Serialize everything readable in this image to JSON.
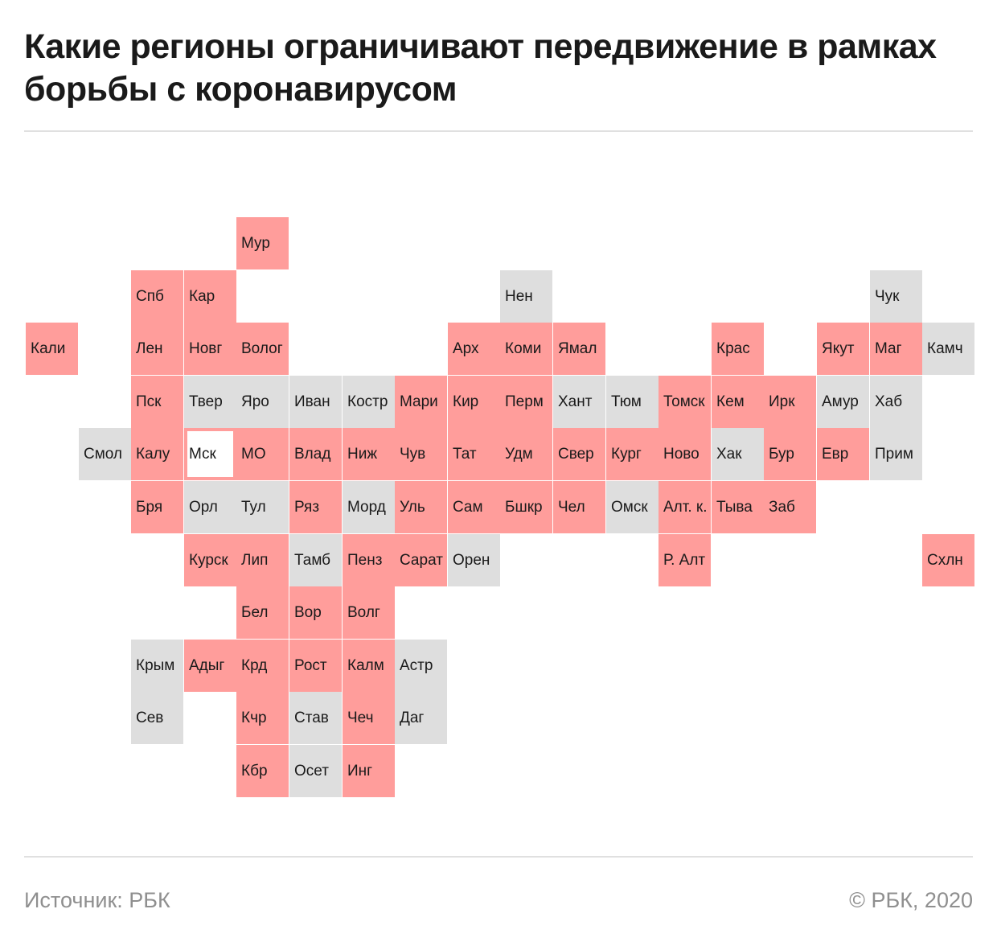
{
  "title": "Какие регионы ограничивают передвижение в рамках борьбы с коронавирусом",
  "source": "Источник: РБК",
  "copyright": "© РБК, 2020",
  "colors": {
    "restricted": "#ff9d9b",
    "not_restricted": "#dedede"
  },
  "regions": [
    {
      "label": "Мур",
      "restricted": true,
      "col": 4,
      "row": 0
    },
    {
      "label": "Спб",
      "restricted": true,
      "col": 2,
      "row": 1
    },
    {
      "label": "Кар",
      "restricted": true,
      "col": 3,
      "row": 1
    },
    {
      "label": "Нен",
      "restricted": false,
      "col": 9,
      "row": 1
    },
    {
      "label": "Чук",
      "restricted": false,
      "col": 16,
      "row": 1
    },
    {
      "label": "Кали",
      "restricted": true,
      "col": 0,
      "row": 2
    },
    {
      "label": "Лен",
      "restricted": true,
      "col": 2,
      "row": 2
    },
    {
      "label": "Новг",
      "restricted": true,
      "col": 3,
      "row": 2
    },
    {
      "label": "Волог",
      "restricted": true,
      "col": 4,
      "row": 2
    },
    {
      "label": "Арх",
      "restricted": true,
      "col": 8,
      "row": 2
    },
    {
      "label": "Коми",
      "restricted": true,
      "col": 9,
      "row": 2
    },
    {
      "label": "Ямал",
      "restricted": true,
      "col": 10,
      "row": 2
    },
    {
      "label": "Крас",
      "restricted": true,
      "col": 13,
      "row": 2
    },
    {
      "label": "Якут",
      "restricted": true,
      "col": 15,
      "row": 2
    },
    {
      "label": "Маг",
      "restricted": true,
      "col": 16,
      "row": 2
    },
    {
      "label": "Камч",
      "restricted": false,
      "col": 17,
      "row": 2
    },
    {
      "label": "Пск",
      "restricted": true,
      "col": 2,
      "row": 3
    },
    {
      "label": "Твер",
      "restricted": false,
      "col": 3,
      "row": 3
    },
    {
      "label": "Яро",
      "restricted": false,
      "col": 4,
      "row": 3
    },
    {
      "label": "Иван",
      "restricted": false,
      "col": 5,
      "row": 3
    },
    {
      "label": "Костр",
      "restricted": false,
      "col": 6,
      "row": 3
    },
    {
      "label": "Мари",
      "restricted": true,
      "col": 7,
      "row": 3
    },
    {
      "label": "Кир",
      "restricted": true,
      "col": 8,
      "row": 3
    },
    {
      "label": "Перм",
      "restricted": true,
      "col": 9,
      "row": 3
    },
    {
      "label": "Хант",
      "restricted": false,
      "col": 10,
      "row": 3
    },
    {
      "label": "Тюм",
      "restricted": false,
      "col": 11,
      "row": 3
    },
    {
      "label": "Томск",
      "restricted": true,
      "col": 12,
      "row": 3
    },
    {
      "label": "Кем",
      "restricted": true,
      "col": 13,
      "row": 3
    },
    {
      "label": "Ирк",
      "restricted": true,
      "col": 14,
      "row": 3
    },
    {
      "label": "Амур",
      "restricted": false,
      "col": 15,
      "row": 3
    },
    {
      "label": "Хаб",
      "restricted": false,
      "col": 16,
      "row": 3
    },
    {
      "label": "Смол",
      "restricted": false,
      "col": 1,
      "row": 4
    },
    {
      "label": "Калу",
      "restricted": true,
      "col": 2,
      "row": 4
    },
    {
      "label": "Мск",
      "restricted": true,
      "col": 3,
      "row": 4
    },
    {
      "label": "МО",
      "restricted": true,
      "col": 4,
      "row": 4
    },
    {
      "label": "Влад",
      "restricted": true,
      "col": 5,
      "row": 4
    },
    {
      "label": "Ниж",
      "restricted": true,
      "col": 6,
      "row": 4
    },
    {
      "label": "Чув",
      "restricted": true,
      "col": 7,
      "row": 4
    },
    {
      "label": "Тат",
      "restricted": true,
      "col": 8,
      "row": 4
    },
    {
      "label": "Удм",
      "restricted": true,
      "col": 9,
      "row": 4
    },
    {
      "label": "Свер",
      "restricted": true,
      "col": 10,
      "row": 4
    },
    {
      "label": "Кург",
      "restricted": true,
      "col": 11,
      "row": 4
    },
    {
      "label": "Ново",
      "restricted": true,
      "col": 12,
      "row": 4
    },
    {
      "label": "Хак",
      "restricted": false,
      "col": 13,
      "row": 4
    },
    {
      "label": "Бур",
      "restricted": true,
      "col": 14,
      "row": 4
    },
    {
      "label": "Евр",
      "restricted": true,
      "col": 15,
      "row": 4
    },
    {
      "label": "Прим",
      "restricted": false,
      "col": 16,
      "row": 4
    },
    {
      "label": "Бря",
      "restricted": true,
      "col": 2,
      "row": 5
    },
    {
      "label": "Орл",
      "restricted": false,
      "col": 3,
      "row": 5
    },
    {
      "label": "Тул",
      "restricted": false,
      "col": 4,
      "row": 5
    },
    {
      "label": "Ряз",
      "restricted": true,
      "col": 5,
      "row": 5
    },
    {
      "label": "Морд",
      "restricted": false,
      "col": 6,
      "row": 5
    },
    {
      "label": "Уль",
      "restricted": true,
      "col": 7,
      "row": 5
    },
    {
      "label": "Сам",
      "restricted": true,
      "col": 8,
      "row": 5
    },
    {
      "label": "Бшкр",
      "restricted": true,
      "col": 9,
      "row": 5
    },
    {
      "label": "Чел",
      "restricted": true,
      "col": 10,
      "row": 5
    },
    {
      "label": "Омск",
      "restricted": false,
      "col": 11,
      "row": 5
    },
    {
      "label": "Алт. к.",
      "restricted": true,
      "col": 12,
      "row": 5
    },
    {
      "label": "Тыва",
      "restricted": true,
      "col": 13,
      "row": 5
    },
    {
      "label": "Заб",
      "restricted": true,
      "col": 14,
      "row": 5
    },
    {
      "label": "Курск",
      "restricted": true,
      "col": 3,
      "row": 6
    },
    {
      "label": "Лип",
      "restricted": true,
      "col": 4,
      "row": 6
    },
    {
      "label": "Тамб",
      "restricted": false,
      "col": 5,
      "row": 6
    },
    {
      "label": "Пенз",
      "restricted": true,
      "col": 6,
      "row": 6
    },
    {
      "label": "Сарат",
      "restricted": true,
      "col": 7,
      "row": 6
    },
    {
      "label": "Орен",
      "restricted": false,
      "col": 8,
      "row": 6
    },
    {
      "label": "Р. Алт",
      "restricted": true,
      "col": 12,
      "row": 6
    },
    {
      "label": "Схлн",
      "restricted": true,
      "col": 17,
      "row": 6
    },
    {
      "label": "Бел",
      "restricted": true,
      "col": 4,
      "row": 7
    },
    {
      "label": "Вор",
      "restricted": true,
      "col": 5,
      "row": 7
    },
    {
      "label": "Волг",
      "restricted": true,
      "col": 6,
      "row": 7
    },
    {
      "label": "Крым",
      "restricted": false,
      "col": 2,
      "row": 8
    },
    {
      "label": "Адыг",
      "restricted": true,
      "col": 3,
      "row": 8
    },
    {
      "label": "Крд",
      "restricted": true,
      "col": 4,
      "row": 8
    },
    {
      "label": "Рост",
      "restricted": true,
      "col": 5,
      "row": 8
    },
    {
      "label": "Калм",
      "restricted": true,
      "col": 6,
      "row": 8
    },
    {
      "label": "Астр",
      "restricted": false,
      "col": 7,
      "row": 8
    },
    {
      "label": "Сев",
      "restricted": false,
      "col": 2,
      "row": 9
    },
    {
      "label": "Кчр",
      "restricted": true,
      "col": 4,
      "row": 9
    },
    {
      "label": "Став",
      "restricted": false,
      "col": 5,
      "row": 9
    },
    {
      "label": "Чеч",
      "restricted": true,
      "col": 6,
      "row": 9
    },
    {
      "label": "Даг",
      "restricted": false,
      "col": 7,
      "row": 9
    },
    {
      "label": "Кбр",
      "restricted": true,
      "col": 4,
      "row": 10
    },
    {
      "label": "Осет",
      "restricted": false,
      "col": 5,
      "row": 10
    },
    {
      "label": "Инг",
      "restricted": true,
      "col": 6,
      "row": 10
    }
  ]
}
